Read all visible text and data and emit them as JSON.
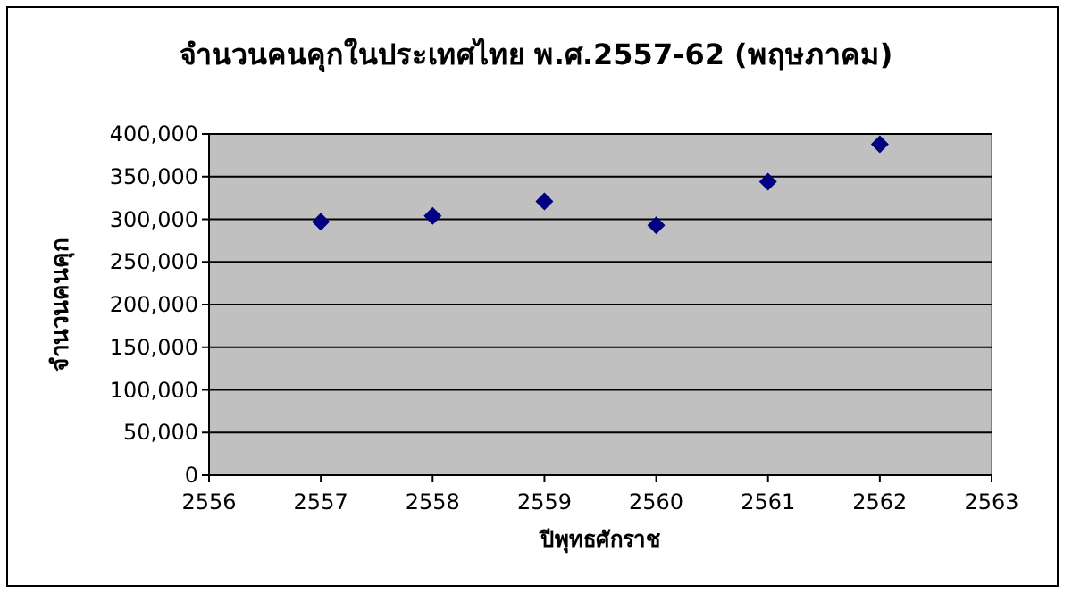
{
  "chart_data": {
    "type": "scatter",
    "title": "จำนวนคนคุกในประเทศไทย พ.ศ.2557-62 (พฤษภาคม)",
    "xlabel": "ปีพุทธศักราช",
    "ylabel": "จำนวนคนคุก",
    "x": [
      2557,
      2558,
      2559,
      2560,
      2561,
      2562
    ],
    "series": [
      {
        "color": "#000080",
        "values": [
          297000,
          304000,
          321000,
          293000,
          344000,
          388000
        ]
      }
    ],
    "xlim": [
      2556,
      2563
    ],
    "xticks": [
      2556,
      2557,
      2558,
      2559,
      2560,
      2561,
      2562,
      2563
    ],
    "ylim": [
      0,
      400000
    ],
    "yticks": [
      {
        "value": 0,
        "label": "0"
      },
      {
        "value": 50000,
        "label": "50,000"
      },
      {
        "value": 100000,
        "label": "100,000"
      },
      {
        "value": 150000,
        "label": "150,000"
      },
      {
        "value": 200000,
        "label": "200,000"
      },
      {
        "value": 250000,
        "label": "250,000"
      },
      {
        "value": 300000,
        "label": "300,000"
      },
      {
        "value": 350000,
        "label": "350,000"
      },
      {
        "value": 400000,
        "label": "400,000"
      }
    ],
    "grid": "y",
    "marker": "diamond"
  }
}
